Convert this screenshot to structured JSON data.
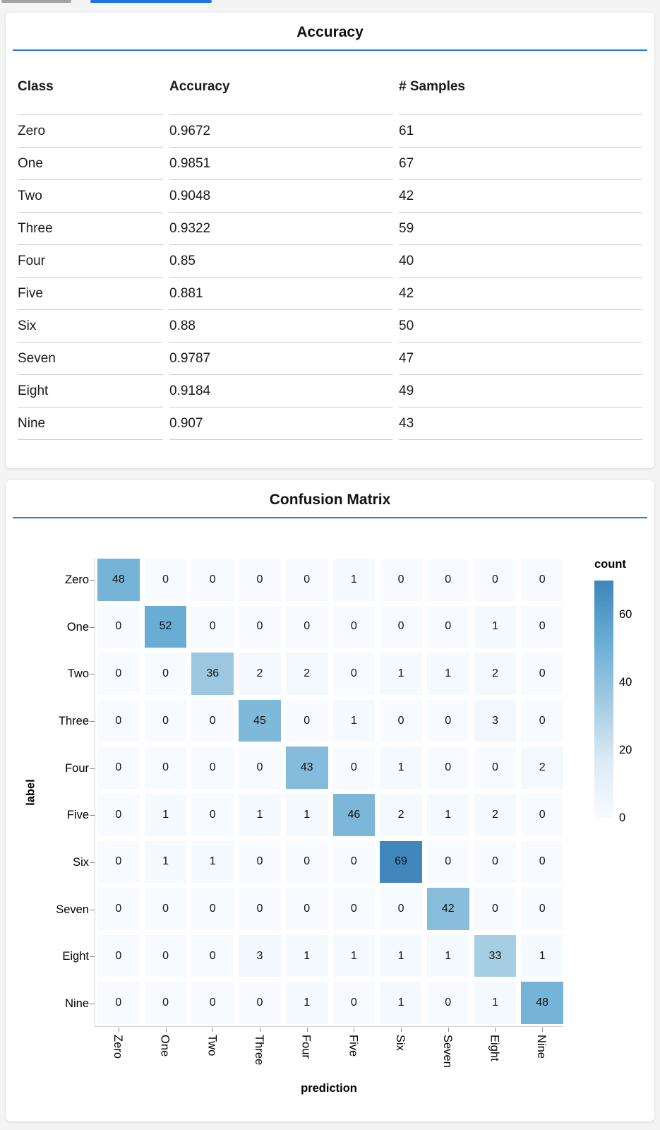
{
  "browser_chrome": {
    "tab_indicator_inactive_color": "#a2a2a2",
    "tab_indicator_active_color": "#1a73e8"
  },
  "colors": {
    "accent_rule": "#2478f0",
    "page_background": "#f4f4f5",
    "card_background": "#ffffff",
    "table_border": "#cbcbcb",
    "axis_line": "#cdd2d7"
  },
  "chart_data": [
    {
      "type": "table",
      "title": "Accuracy",
      "columns": [
        "Class",
        "Accuracy",
        "# Samples"
      ],
      "rows": [
        [
          "Zero",
          "0.9672",
          "61"
        ],
        [
          "One",
          "0.9851",
          "67"
        ],
        [
          "Two",
          "0.9048",
          "42"
        ],
        [
          "Three",
          "0.9322",
          "59"
        ],
        [
          "Four",
          "0.85",
          "40"
        ],
        [
          "Five",
          "0.881",
          "42"
        ],
        [
          "Six",
          "0.88",
          "50"
        ],
        [
          "Seven",
          "0.9787",
          "47"
        ],
        [
          "Eight",
          "0.9184",
          "49"
        ],
        [
          "Nine",
          "0.907",
          "43"
        ]
      ]
    },
    {
      "type": "heatmap",
      "title": "Confusion Matrix",
      "xlabel": "prediction",
      "ylabel": "label",
      "x_categories": [
        "Zero",
        "One",
        "Two",
        "Three",
        "Four",
        "Five",
        "Six",
        "Seven",
        "Eight",
        "Nine"
      ],
      "y_categories": [
        "Zero",
        "One",
        "Two",
        "Three",
        "Four",
        "Five",
        "Six",
        "Seven",
        "Eight",
        "Nine"
      ],
      "values": [
        [
          48,
          0,
          0,
          0,
          0,
          1,
          0,
          0,
          0,
          0
        ],
        [
          0,
          52,
          0,
          0,
          0,
          0,
          0,
          0,
          1,
          0
        ],
        [
          0,
          0,
          36,
          2,
          2,
          0,
          1,
          1,
          2,
          0
        ],
        [
          0,
          0,
          0,
          45,
          0,
          1,
          0,
          0,
          3,
          0
        ],
        [
          0,
          0,
          0,
          0,
          43,
          0,
          1,
          0,
          0,
          2
        ],
        [
          0,
          1,
          0,
          1,
          1,
          46,
          2,
          1,
          2,
          0
        ],
        [
          0,
          1,
          1,
          0,
          0,
          0,
          69,
          0,
          0,
          0
        ],
        [
          0,
          0,
          0,
          0,
          0,
          0,
          0,
          42,
          0,
          0
        ],
        [
          0,
          0,
          0,
          3,
          1,
          1,
          1,
          1,
          33,
          1
        ],
        [
          0,
          0,
          0,
          0,
          1,
          0,
          1,
          0,
          1,
          48
        ]
      ],
      "color_stops": [
        "#f7fbff",
        "#dbe9f6",
        "#9ecae1",
        "#68acd4",
        "#3e86ba"
      ],
      "legend": {
        "title": "count",
        "ticks": [
          0,
          20,
          40,
          60
        ],
        "domain": [
          0,
          70
        ],
        "position": "right"
      },
      "grid": false
    }
  ]
}
